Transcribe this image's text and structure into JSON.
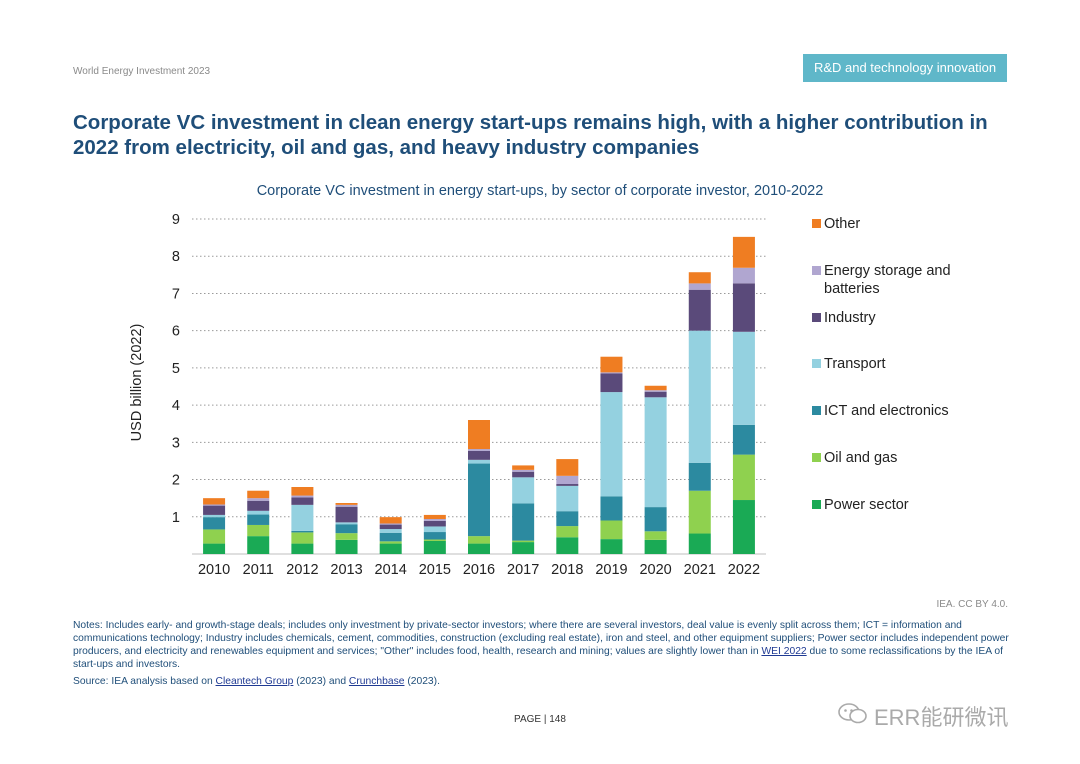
{
  "header": {
    "report_name": "World Energy Investment 2023",
    "section": "R&D and technology innovation",
    "headline": "Corporate VC investment in clean energy start-ups remains high, with a higher contribution in 2022 from electricity, oil and gas, and heavy industry companies"
  },
  "chart_data": {
    "type": "bar",
    "stacked": true,
    "title": "Corporate VC investment in energy start-ups, by sector of corporate investor, 2010-2022",
    "xlabel": "",
    "ylabel": "USD billion (2022)",
    "ylim": [
      0,
      9
    ],
    "yticks": [
      "1",
      "2",
      "3",
      "4",
      "5",
      "6",
      "7",
      "8",
      "9"
    ],
    "grid": true,
    "legend_position": "right",
    "categories": [
      "2010",
      "2011",
      "2012",
      "2013",
      "2014",
      "2015",
      "2016",
      "2017",
      "2018",
      "2019",
      "2020",
      "2021",
      "2022"
    ],
    "series": [
      {
        "name": "Power sector",
        "color": "#1aaa55",
        "values": [
          0.28,
          0.48,
          0.28,
          0.38,
          0.28,
          0.35,
          0.28,
          0.32,
          0.45,
          0.4,
          0.38,
          0.55,
          1.45
        ]
      },
      {
        "name": "Oil and gas",
        "color": "#8fd14f",
        "values": [
          0.38,
          0.3,
          0.3,
          0.18,
          0.06,
          0.04,
          0.2,
          0.04,
          0.3,
          0.5,
          0.23,
          1.15,
          1.22
        ]
      },
      {
        "name": "ICT and electronics",
        "color": "#2c8aa0",
        "values": [
          0.33,
          0.28,
          0.04,
          0.24,
          0.23,
          0.2,
          1.95,
          1.0,
          0.4,
          0.65,
          0.65,
          0.75,
          0.8
        ]
      },
      {
        "name": "Transport",
        "color": "#94d1e0",
        "values": [
          0.06,
          0.1,
          0.7,
          0.05,
          0.1,
          0.15,
          0.1,
          0.7,
          0.68,
          2.8,
          2.95,
          3.55,
          2.5
        ]
      },
      {
        "name": "Industry",
        "color": "#5a4a7a",
        "values": [
          0.25,
          0.27,
          0.2,
          0.42,
          0.12,
          0.15,
          0.24,
          0.15,
          0.05,
          0.5,
          0.15,
          1.1,
          1.3
        ]
      },
      {
        "name": "Energy storage and batteries",
        "color": "#b0a6d0",
        "values": [
          0.03,
          0.07,
          0.05,
          0.05,
          0.03,
          0.05,
          0.05,
          0.05,
          0.22,
          0.03,
          0.04,
          0.17,
          0.42
        ]
      },
      {
        "name": "Other",
        "color": "#ef7d22",
        "values": [
          0.17,
          0.2,
          0.23,
          0.05,
          0.17,
          0.11,
          0.78,
          0.12,
          0.45,
          0.42,
          0.12,
          0.3,
          0.83
        ]
      }
    ]
  },
  "footer": {
    "license": "IEA. CC BY 4.0.",
    "notes_before": "Notes: Includes early- and growth-stage deals; includes only investment by private-sector investors; where there are several investors, deal value is evenly split across them; ICT = information and communications technology; Industry includes chemicals, cement, commodities, construction (excluding real estate), iron and steel, and other equipment suppliers; Power sector includes independent power producers, and electricity and renewables equipment and services; \"Other\" includes food, health, research and mining; values are slightly lower than in ",
    "notes_link": "WEI 2022",
    "notes_after": " due to some reclassifications by the IEA of start-ups and investors.",
    "source_prefix": "Source: IEA analysis based on ",
    "source_link1": "Cleantech Group",
    "source_mid": " (2023) and ",
    "source_link2": "Crunchbase",
    "source_suffix": " (2023).",
    "page": "PAGE | 148"
  },
  "watermark": {
    "text": "ERR能研微讯"
  }
}
